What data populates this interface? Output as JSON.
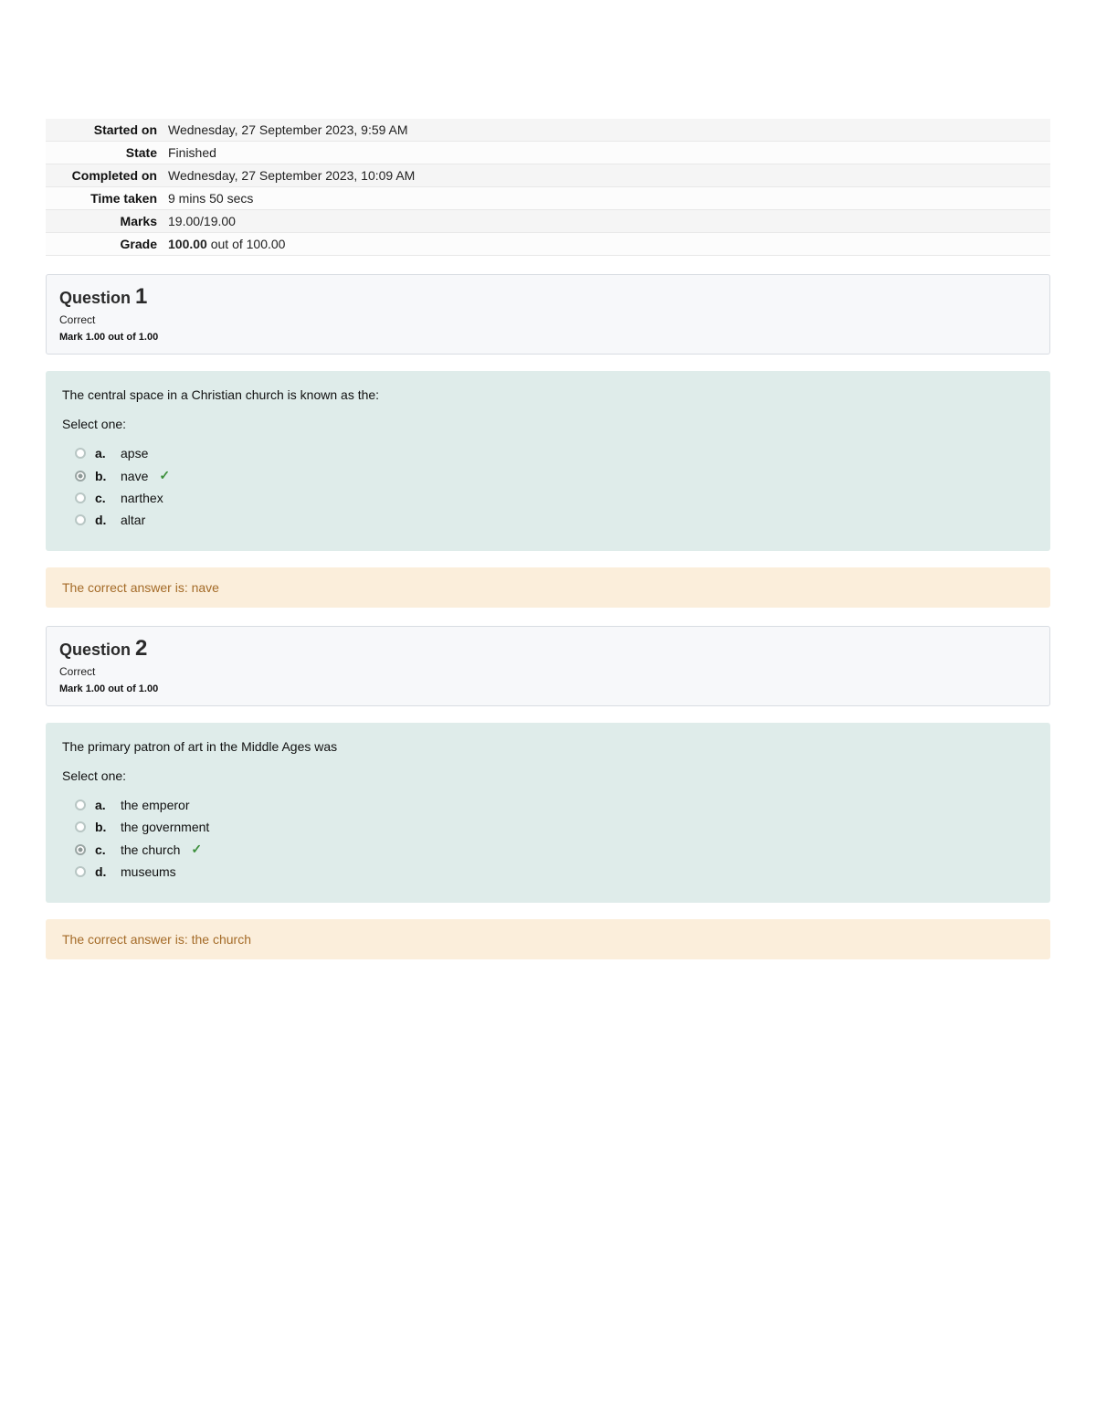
{
  "summary": {
    "rows": [
      {
        "label": "Started on",
        "value": "Wednesday, 27 September 2023, 9:59 AM"
      },
      {
        "label": "State",
        "value": "Finished"
      },
      {
        "label": "Completed on",
        "value": "Wednesday, 27 September 2023, 10:09 AM"
      },
      {
        "label": "Time taken",
        "value": "9 mins 50 secs"
      },
      {
        "label": "Marks",
        "value": "19.00/19.00"
      },
      {
        "label": "Grade",
        "value_prefix": "100.00",
        "value_suffix": " out of 100.00"
      }
    ]
  },
  "labels": {
    "question_word": "Question",
    "select_one": "Select one:",
    "correct_prefix": "The correct answer is: "
  },
  "questions": [
    {
      "number": "1",
      "state": "Correct",
      "mark": "Mark 1.00 out of 1.00",
      "text": "The central space in a Christian church is known as the:",
      "options": [
        {
          "letter": "a.",
          "text": "apse",
          "selected": false,
          "correct": false
        },
        {
          "letter": "b.",
          "text": "nave",
          "selected": true,
          "correct": true
        },
        {
          "letter": "c.",
          "text": "narthex",
          "selected": false,
          "correct": false
        },
        {
          "letter": "d.",
          "text": "altar",
          "selected": false,
          "correct": false
        }
      ],
      "correct_answer": "nave"
    },
    {
      "number": "2",
      "state": "Correct",
      "mark": "Mark 1.00 out of 1.00",
      "text": "The primary patron of art in the Middle Ages was",
      "options": [
        {
          "letter": "a.",
          "text": "the emperor",
          "selected": false,
          "correct": false
        },
        {
          "letter": "b.",
          "text": "the government",
          "selected": false,
          "correct": false
        },
        {
          "letter": "c.",
          "text": "the church",
          "selected": true,
          "correct": true
        },
        {
          "letter": "d.",
          "text": "museums",
          "selected": false,
          "correct": false
        }
      ],
      "correct_answer": "the church"
    }
  ],
  "colors": {
    "page_bg": "#ffffff",
    "summary_row_odd": "#f5f5f5",
    "summary_row_even": "#fcfcfc",
    "qheader_bg": "#f7f8fa",
    "qheader_border": "#d8dce2",
    "qcontent_bg": "#dfecea",
    "feedback_bg": "#fbeedb",
    "feedback_text": "#a46b28",
    "check_color": "#3c8f3c"
  }
}
